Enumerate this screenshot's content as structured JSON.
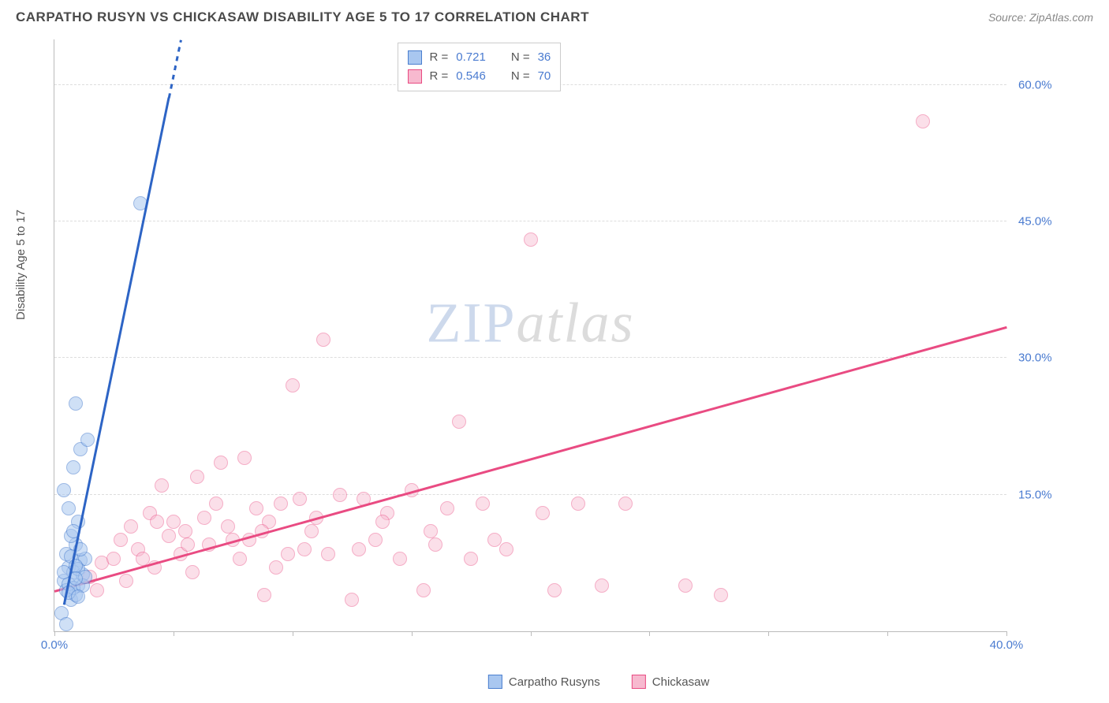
{
  "header": {
    "title": "CARPATHO RUSYN VS CHICKASAW DISABILITY AGE 5 TO 17 CORRELATION CHART",
    "source": "Source: ZipAtlas.com"
  },
  "watermark": {
    "part1": "ZIP",
    "part2": "atlas"
  },
  "chart": {
    "type": "scatter",
    "y_axis_label": "Disability Age 5 to 17",
    "xlim": [
      0,
      40
    ],
    "ylim": [
      0,
      65
    ],
    "x_ticks": [
      0,
      5,
      10,
      15,
      20,
      25,
      30,
      35,
      40
    ],
    "x_tick_labels": [
      "0.0%",
      "",
      "",
      "",
      "",
      "",
      "",
      "",
      "40.0%"
    ],
    "y_ticks": [
      15,
      30,
      45,
      60
    ],
    "y_tick_labels": [
      "15.0%",
      "30.0%",
      "45.0%",
      "60.0%"
    ],
    "background_color": "#ffffff",
    "grid_color": "#dddddd",
    "axis_color": "#bbbbbb",
    "tick_label_color": "#4a7bd0",
    "point_radius": 8,
    "series": {
      "carpatho": {
        "label": "Carpatho Rusyns",
        "fill": "#a9c7f0",
        "stroke": "#4b7fcf",
        "fill_opacity": 0.55,
        "r_value": "0.721",
        "n_value": "36",
        "trend": {
          "x1": 0.4,
          "y1": 3.0,
          "x2": 5.3,
          "y2": 65.0,
          "dash_after_x": 4.8,
          "color": "#2d64c5",
          "width": 2.5
        },
        "points": [
          [
            0.3,
            2.0
          ],
          [
            0.5,
            0.8
          ],
          [
            0.7,
            3.5
          ],
          [
            0.9,
            4.0
          ],
          [
            1.0,
            5.0
          ],
          [
            0.4,
            5.5
          ],
          [
            0.6,
            7.0
          ],
          [
            0.8,
            6.5
          ],
          [
            1.1,
            7.8
          ],
          [
            0.5,
            8.5
          ],
          [
            0.9,
            9.5
          ],
          [
            1.2,
            6.2
          ],
          [
            0.7,
            10.5
          ],
          [
            1.0,
            12.0
          ],
          [
            0.6,
            13.5
          ],
          [
            1.3,
            8.0
          ],
          [
            0.4,
            15.5
          ],
          [
            0.8,
            18.0
          ],
          [
            1.1,
            20.0
          ],
          [
            1.4,
            21.0
          ],
          [
            0.9,
            25.0
          ],
          [
            3.6,
            47.0
          ],
          [
            0.5,
            4.5
          ],
          [
            0.6,
            5.2
          ],
          [
            0.8,
            4.8
          ],
          [
            1.0,
            6.8
          ],
          [
            1.2,
            5.0
          ],
          [
            0.7,
            8.2
          ],
          [
            0.9,
            7.2
          ],
          [
            1.1,
            9.0
          ],
          [
            0.8,
            11.0
          ],
          [
            0.6,
            4.2
          ],
          [
            1.3,
            6.0
          ],
          [
            1.0,
            3.8
          ],
          [
            0.4,
            6.5
          ],
          [
            0.9,
            5.8
          ]
        ]
      },
      "chickasaw": {
        "label": "Chickasaw",
        "fill": "#f7b9cf",
        "stroke": "#e94b82",
        "fill_opacity": 0.45,
        "r_value": "0.546",
        "n_value": "70",
        "trend": {
          "x1": 0.0,
          "y1": 4.5,
          "x2": 40.0,
          "y2": 33.5,
          "color": "#e94b82",
          "width": 2.5
        },
        "points": [
          [
            1.5,
            6.0
          ],
          [
            2.0,
            7.5
          ],
          [
            2.5,
            8.0
          ],
          [
            3.0,
            5.5
          ],
          [
            3.2,
            11.5
          ],
          [
            3.5,
            9.0
          ],
          [
            4.0,
            13.0
          ],
          [
            4.2,
            7.0
          ],
          [
            4.5,
            16.0
          ],
          [
            4.8,
            10.5
          ],
          [
            5.0,
            12.0
          ],
          [
            5.3,
            8.5
          ],
          [
            5.5,
            11.0
          ],
          [
            5.8,
            6.5
          ],
          [
            6.0,
            17.0
          ],
          [
            6.3,
            12.5
          ],
          [
            6.5,
            9.5
          ],
          [
            7.0,
            18.5
          ],
          [
            7.3,
            11.5
          ],
          [
            7.8,
            8.0
          ],
          [
            8.0,
            19.0
          ],
          [
            8.2,
            10.0
          ],
          [
            8.5,
            13.5
          ],
          [
            8.8,
            4.0
          ],
          [
            9.0,
            12.0
          ],
          [
            9.5,
            14.0
          ],
          [
            9.8,
            8.5
          ],
          [
            10.0,
            27.0
          ],
          [
            10.3,
            14.5
          ],
          [
            10.5,
            9.0
          ],
          [
            11.0,
            12.5
          ],
          [
            11.3,
            32.0
          ],
          [
            11.5,
            8.5
          ],
          [
            12.0,
            15.0
          ],
          [
            12.5,
            3.5
          ],
          [
            13.0,
            14.5
          ],
          [
            13.5,
            10.0
          ],
          [
            14.0,
            13.0
          ],
          [
            14.5,
            8.0
          ],
          [
            15.0,
            15.5
          ],
          [
            15.5,
            4.5
          ],
          [
            16.0,
            9.5
          ],
          [
            16.5,
            13.5
          ],
          [
            17.0,
            23.0
          ],
          [
            17.5,
            8.0
          ],
          [
            18.0,
            14.0
          ],
          [
            19.0,
            9.0
          ],
          [
            20.0,
            43.0
          ],
          [
            20.5,
            13.0
          ],
          [
            21.0,
            4.5
          ],
          [
            22.0,
            14.0
          ],
          [
            23.0,
            5.0
          ],
          [
            24.0,
            14.0
          ],
          [
            26.5,
            5.0
          ],
          [
            28.0,
            4.0
          ],
          [
            36.5,
            56.0
          ],
          [
            2.8,
            10.0
          ],
          [
            3.7,
            8.0
          ],
          [
            4.3,
            12.0
          ],
          [
            5.6,
            9.5
          ],
          [
            6.8,
            14.0
          ],
          [
            7.5,
            10.0
          ],
          [
            8.7,
            11.0
          ],
          [
            9.3,
            7.0
          ],
          [
            10.8,
            11.0
          ],
          [
            12.8,
            9.0
          ],
          [
            13.8,
            12.0
          ],
          [
            15.8,
            11.0
          ],
          [
            18.5,
            10.0
          ],
          [
            1.8,
            4.5
          ]
        ]
      }
    },
    "stats_legend": {
      "r_label": "R  =",
      "n_label": "N  ="
    },
    "bottom_legend": true
  }
}
